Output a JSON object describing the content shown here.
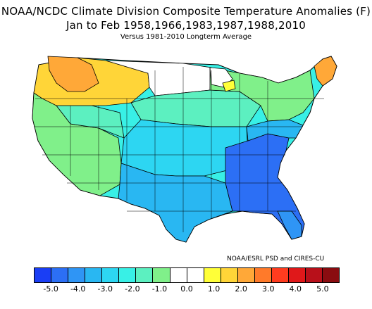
{
  "title_line1": "NOAA/NCDC Climate Division Composite Temperature Anomalies (F)",
  "title_line2": "Jan to Feb  1958,1966,1983,1987,1988,2010",
  "title_line3": "Versus 1981-2010 Longterm Average",
  "credit": "NOAA/ESRL PSD and CIRES-CU",
  "colorbar": {
    "colors": [
      "#1a3ef5",
      "#2c6ff5",
      "#2f95f5",
      "#29b7f2",
      "#2dd6f2",
      "#38f0e6",
      "#5cf0c0",
      "#80f08a",
      "#ffffff",
      "#ffffff",
      "#ffff38",
      "#ffd538",
      "#ffa838",
      "#ff7a2a",
      "#ff3c1f",
      "#e0181a",
      "#b8101a",
      "#8a0c10"
    ],
    "ticks": [
      "-5.0",
      "-4.0",
      "-3.0",
      "-2.0",
      "-1.0",
      "0.0",
      "1.0",
      "2.0",
      "3.0",
      "4.0",
      "5.0"
    ]
  },
  "map": {
    "description_colors": {
      "warm_strong": "#ffa838",
      "warm": "#ffd538",
      "neutral": "#ffffff",
      "cool_light": "#80f08a",
      "cool": "#5cf0c0",
      "cool_mid": "#38f0e6",
      "cold": "#2dd6f2",
      "colder": "#29b7f2",
      "coldest": "#2f95f5",
      "very_cold": "#2c6ff5"
    }
  }
}
